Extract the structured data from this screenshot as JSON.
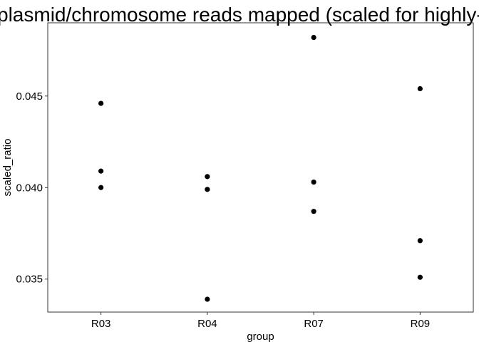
{
  "chart_data": {
    "type": "scatter",
    "title": "plasmid/chromosome reads mapped (scaled for highly-expre",
    "xlabel": "group",
    "ylabel": "scaled_ratio",
    "categories": [
      "R03",
      "R04",
      "R07",
      "R09"
    ],
    "y_ticks": [
      0.035,
      0.04,
      0.045
    ],
    "y_tick_labels": [
      "0.035",
      "0.040",
      "0.045"
    ],
    "ylim": [
      0.0332,
      0.049
    ],
    "grid": false,
    "points": [
      {
        "x": "R03",
        "y": 0.0446
      },
      {
        "x": "R03",
        "y": 0.0409
      },
      {
        "x": "R03",
        "y": 0.04
      },
      {
        "x": "R04",
        "y": 0.0406
      },
      {
        "x": "R04",
        "y": 0.0399
      },
      {
        "x": "R04",
        "y": 0.0339
      },
      {
        "x": "R07",
        "y": 0.0482
      },
      {
        "x": "R07",
        "y": 0.0403
      },
      {
        "x": "R07",
        "y": 0.0387
      },
      {
        "x": "R09",
        "y": 0.0454
      },
      {
        "x": "R09",
        "y": 0.0371
      },
      {
        "x": "R09",
        "y": 0.0351
      }
    ],
    "point_color": "#000000"
  }
}
